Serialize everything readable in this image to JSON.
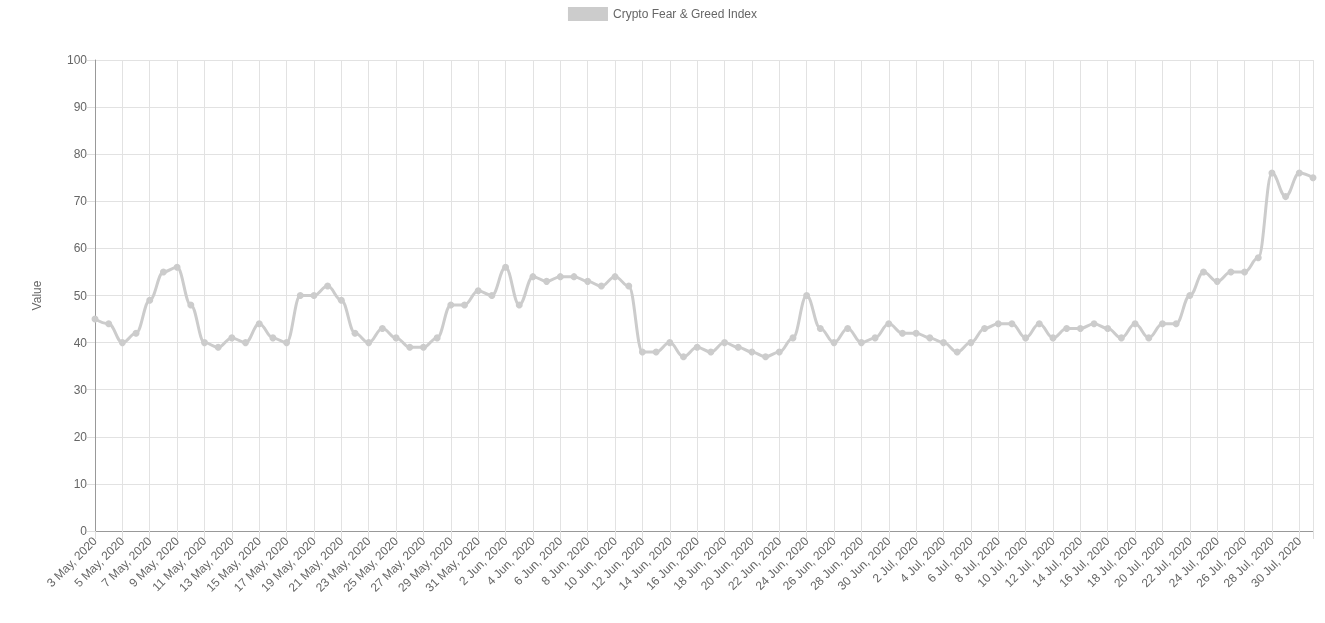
{
  "chart_data": {
    "type": "line",
    "ylabel": "Value",
    "categories": [
      "3 May, 2020",
      null,
      "5 May, 2020",
      null,
      "7 May, 2020",
      null,
      "9 May, 2020",
      null,
      "11 May, 2020",
      null,
      "13 May, 2020",
      null,
      "15 May, 2020",
      null,
      "17 May, 2020",
      null,
      "19 May, 2020",
      null,
      "21 May, 2020",
      null,
      "23 May, 2020",
      null,
      "25 May, 2020",
      null,
      "27 May, 2020",
      null,
      "29 May, 2020",
      null,
      "31 May, 2020",
      null,
      "2 Jun, 2020",
      null,
      "4 Jun, 2020",
      null,
      "6 Jun, 2020",
      null,
      "8 Jun, 2020",
      null,
      "10 Jun, 2020",
      null,
      "12 Jun, 2020",
      null,
      "14 Jun, 2020",
      null,
      "16 Jun, 2020",
      null,
      "18 Jun, 2020",
      null,
      "20 Jun, 2020",
      null,
      "22 Jun, 2020",
      null,
      "24 Jun, 2020",
      null,
      "26 Jun, 2020",
      null,
      "28 Jun, 2020",
      null,
      "30 Jun, 2020",
      null,
      "2 Jul, 2020",
      null,
      "4 Jul, 2020",
      null,
      "6 Jul, 2020",
      null,
      "8 Jul, 2020",
      null,
      "10 Jul, 2020",
      null,
      "12 Jul, 2020",
      null,
      "14 Jul, 2020",
      null,
      "16 Jul, 2020",
      null,
      "18 Jul, 2020",
      null,
      "20 Jul, 2020",
      null,
      "22 Jul, 2020",
      null,
      "24 Jul, 2020",
      null,
      "26 Jul, 2020",
      null,
      "28 Jul, 2020",
      null,
      "30 Jul, 2020",
      null
    ],
    "series": [
      {
        "name": "Crypto Fear & Greed Index",
        "color": "#cccccc",
        "values": [
          45,
          44,
          40,
          42,
          49,
          55,
          56,
          48,
          40,
          39,
          41,
          40,
          44,
          41,
          40,
          50,
          50,
          52,
          49,
          42,
          40,
          43,
          41,
          39,
          39,
          41,
          48,
          48,
          51,
          50,
          56,
          48,
          54,
          53,
          54,
          54,
          53,
          52,
          54,
          52,
          38,
          38,
          40,
          37,
          39,
          38,
          40,
          39,
          38,
          37,
          38,
          41,
          50,
          43,
          40,
          43,
          40,
          41,
          44,
          42,
          42,
          41,
          40,
          38,
          40,
          43,
          44,
          44,
          41,
          44,
          41,
          43,
          43,
          44,
          43,
          41,
          44,
          41,
          44,
          44,
          50,
          55,
          53,
          55,
          55,
          58,
          76,
          71,
          76,
          75
        ]
      }
    ],
    "ylim": [
      0,
      100
    ],
    "yticks": [
      0,
      10,
      20,
      30,
      40,
      50,
      60,
      70,
      80,
      90,
      100
    ],
    "grid": true,
    "legend": "top",
    "marker": "circle",
    "line_style": "solid"
  }
}
